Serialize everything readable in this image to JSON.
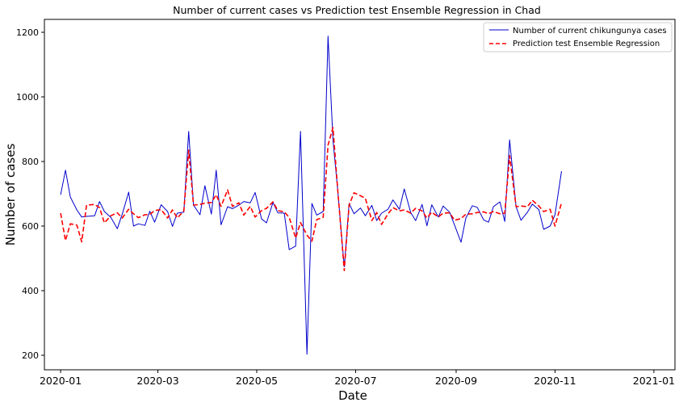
{
  "chart_data": {
    "type": "line",
    "title": "Number of current cases vs Prediction test Ensemble Regression in Chad",
    "xlabel": "Date",
    "ylabel": "Number of cases",
    "xlim": [
      "2019-12-22",
      "2021-01-14"
    ],
    "ylim": [
      155,
      1240
    ],
    "x_ticks": [
      "2020-01",
      "2020-03",
      "2020-05",
      "2020-07",
      "2020-09",
      "2020-11",
      "2021-01"
    ],
    "y_ticks": [
      200,
      400,
      600,
      800,
      1000,
      1200
    ],
    "grid": false,
    "legend_position": "top-right",
    "series": [
      {
        "name": "Number of current chikungunya cases",
        "color": "#0000cc",
        "style": "solid",
        "points": [
          [
            "2020-01-01",
            697
          ],
          [
            "2020-01-04",
            773
          ],
          [
            "2020-01-07",
            690
          ],
          [
            "2020-01-11",
            650
          ],
          [
            "2020-01-14",
            628
          ],
          [
            "2020-01-17",
            630
          ],
          [
            "2020-01-22",
            632
          ],
          [
            "2020-01-25",
            676
          ],
          [
            "2020-01-28",
            645
          ],
          [
            "2020-02-01",
            627
          ],
          [
            "2020-02-05",
            592
          ],
          [
            "2020-02-08",
            637
          ],
          [
            "2020-02-12",
            705
          ],
          [
            "2020-02-15",
            600
          ],
          [
            "2020-02-18",
            607
          ],
          [
            "2020-02-22",
            602
          ],
          [
            "2020-02-25",
            646
          ],
          [
            "2020-02-28",
            612
          ],
          [
            "2020-03-03",
            666
          ],
          [
            "2020-03-07",
            645
          ],
          [
            "2020-03-10",
            599
          ],
          [
            "2020-03-13",
            640
          ],
          [
            "2020-03-17",
            643
          ],
          [
            "2020-03-20",
            893
          ],
          [
            "2020-03-23",
            665
          ],
          [
            "2020-03-27",
            635
          ],
          [
            "2020-03-30",
            725
          ],
          [
            "2020-04-03",
            637
          ],
          [
            "2020-04-06",
            773
          ],
          [
            "2020-04-09",
            604
          ],
          [
            "2020-04-13",
            660
          ],
          [
            "2020-04-16",
            654
          ],
          [
            "2020-04-20",
            665
          ],
          [
            "2020-04-23",
            676
          ],
          [
            "2020-04-27",
            672
          ],
          [
            "2020-04-30",
            704
          ],
          [
            "2020-05-04",
            622
          ],
          [
            "2020-05-07",
            610
          ],
          [
            "2020-05-11",
            673
          ],
          [
            "2020-05-14",
            641
          ],
          [
            "2020-05-18",
            640
          ],
          [
            "2020-05-21",
            527
          ],
          [
            "2020-05-25",
            538
          ],
          [
            "2020-05-28",
            893
          ],
          [
            "2020-06-01",
            203
          ],
          [
            "2020-06-04",
            670
          ],
          [
            "2020-06-07",
            634
          ],
          [
            "2020-06-11",
            645
          ],
          [
            "2020-06-14",
            1188
          ],
          [
            "2020-06-17",
            867
          ],
          [
            "2020-06-20",
            708
          ],
          [
            "2020-06-24",
            474
          ],
          [
            "2020-06-27",
            670
          ],
          [
            "2020-06-30",
            638
          ],
          [
            "2020-07-04",
            656
          ],
          [
            "2020-07-07",
            632
          ],
          [
            "2020-07-11",
            664
          ],
          [
            "2020-07-14",
            617
          ],
          [
            "2020-07-17",
            640
          ],
          [
            "2020-07-21",
            652
          ],
          [
            "2020-07-24",
            681
          ],
          [
            "2020-07-28",
            652
          ],
          [
            "2020-07-31",
            715
          ],
          [
            "2020-08-04",
            642
          ],
          [
            "2020-08-07",
            617
          ],
          [
            "2020-08-11",
            667
          ],
          [
            "2020-08-14",
            601
          ],
          [
            "2020-08-17",
            666
          ],
          [
            "2020-08-21",
            628
          ],
          [
            "2020-08-24",
            662
          ],
          [
            "2020-08-28",
            643
          ],
          [
            "2020-08-31",
            603
          ],
          [
            "2020-09-04",
            550
          ],
          [
            "2020-09-07",
            625
          ],
          [
            "2020-09-11",
            663
          ],
          [
            "2020-09-14",
            658
          ],
          [
            "2020-09-18",
            619
          ],
          [
            "2020-09-21",
            612
          ],
          [
            "2020-09-24",
            660
          ],
          [
            "2020-09-28",
            675
          ],
          [
            "2020-10-01",
            614
          ],
          [
            "2020-10-04",
            867
          ],
          [
            "2020-10-08",
            660
          ],
          [
            "2020-10-11",
            618
          ],
          [
            "2020-10-15",
            643
          ],
          [
            "2020-10-18",
            668
          ],
          [
            "2020-10-22",
            651
          ],
          [
            "2020-10-25",
            590
          ],
          [
            "2020-10-29",
            600
          ],
          [
            "2020-11-01",
            635
          ],
          [
            "2020-11-05",
            770
          ]
        ]
      },
      {
        "name": "Prediction test Ensemble Regression",
        "color": "#ff0000",
        "style": "dashed",
        "points": [
          [
            "2020-01-01",
            640
          ],
          [
            "2020-01-04",
            555
          ],
          [
            "2020-01-07",
            607
          ],
          [
            "2020-01-11",
            603
          ],
          [
            "2020-01-14",
            551
          ],
          [
            "2020-01-17",
            665
          ],
          [
            "2020-01-22",
            667
          ],
          [
            "2020-01-25",
            657
          ],
          [
            "2020-01-28",
            610
          ],
          [
            "2020-02-01",
            632
          ],
          [
            "2020-02-05",
            641
          ],
          [
            "2020-02-08",
            625
          ],
          [
            "2020-02-12",
            652
          ],
          [
            "2020-02-15",
            638
          ],
          [
            "2020-02-18",
            626
          ],
          [
            "2020-02-22",
            635
          ],
          [
            "2020-02-25",
            636
          ],
          [
            "2020-02-28",
            648
          ],
          [
            "2020-03-03",
            651
          ],
          [
            "2020-03-07",
            625
          ],
          [
            "2020-03-10",
            650
          ],
          [
            "2020-03-13",
            625
          ],
          [
            "2020-03-17",
            647
          ],
          [
            "2020-03-20",
            835
          ],
          [
            "2020-03-23",
            665
          ],
          [
            "2020-03-27",
            667
          ],
          [
            "2020-03-30",
            671
          ],
          [
            "2020-04-03",
            673
          ],
          [
            "2020-04-06",
            697
          ],
          [
            "2020-04-09",
            661
          ],
          [
            "2020-04-13",
            712
          ],
          [
            "2020-04-16",
            661
          ],
          [
            "2020-04-20",
            672
          ],
          [
            "2020-04-23",
            634
          ],
          [
            "2020-04-27",
            661
          ],
          [
            "2020-04-30",
            628
          ],
          [
            "2020-05-04",
            648
          ],
          [
            "2020-05-07",
            655
          ],
          [
            "2020-05-11",
            675
          ],
          [
            "2020-05-14",
            648
          ],
          [
            "2020-05-18",
            644
          ],
          [
            "2020-05-21",
            627
          ],
          [
            "2020-05-25",
            563
          ],
          [
            "2020-05-28",
            611
          ],
          [
            "2020-06-01",
            572
          ],
          [
            "2020-06-04",
            553
          ],
          [
            "2020-06-07",
            620
          ],
          [
            "2020-06-11",
            627
          ],
          [
            "2020-06-14",
            851
          ],
          [
            "2020-06-17",
            905
          ],
          [
            "2020-06-20",
            710
          ],
          [
            "2020-06-24",
            462
          ],
          [
            "2020-06-27",
            665
          ],
          [
            "2020-06-30",
            703
          ],
          [
            "2020-07-04",
            694
          ],
          [
            "2020-07-07",
            686
          ],
          [
            "2020-07-11",
            617
          ],
          [
            "2020-07-14",
            642
          ],
          [
            "2020-07-17",
            605
          ],
          [
            "2020-07-21",
            638
          ],
          [
            "2020-07-24",
            657
          ],
          [
            "2020-07-28",
            647
          ],
          [
            "2020-07-31",
            650
          ],
          [
            "2020-08-04",
            640
          ],
          [
            "2020-08-07",
            655
          ],
          [
            "2020-08-11",
            647
          ],
          [
            "2020-08-14",
            625
          ],
          [
            "2020-08-17",
            643
          ],
          [
            "2020-08-21",
            628
          ],
          [
            "2020-08-24",
            640
          ],
          [
            "2020-08-28",
            641
          ],
          [
            "2020-08-31",
            618
          ],
          [
            "2020-09-04",
            623
          ],
          [
            "2020-09-07",
            637
          ],
          [
            "2020-09-11",
            638
          ],
          [
            "2020-09-14",
            642
          ],
          [
            "2020-09-18",
            644
          ],
          [
            "2020-09-21",
            638
          ],
          [
            "2020-09-24",
            645
          ],
          [
            "2020-09-28",
            638
          ],
          [
            "2020-10-01",
            640
          ],
          [
            "2020-10-04",
            818
          ],
          [
            "2020-10-08",
            660
          ],
          [
            "2020-10-11",
            662
          ],
          [
            "2020-10-15",
            660
          ],
          [
            "2020-10-18",
            680
          ],
          [
            "2020-10-22",
            662
          ],
          [
            "2020-10-25",
            645
          ],
          [
            "2020-10-29",
            652
          ],
          [
            "2020-11-01",
            600
          ],
          [
            "2020-11-05",
            672
          ]
        ]
      }
    ]
  }
}
